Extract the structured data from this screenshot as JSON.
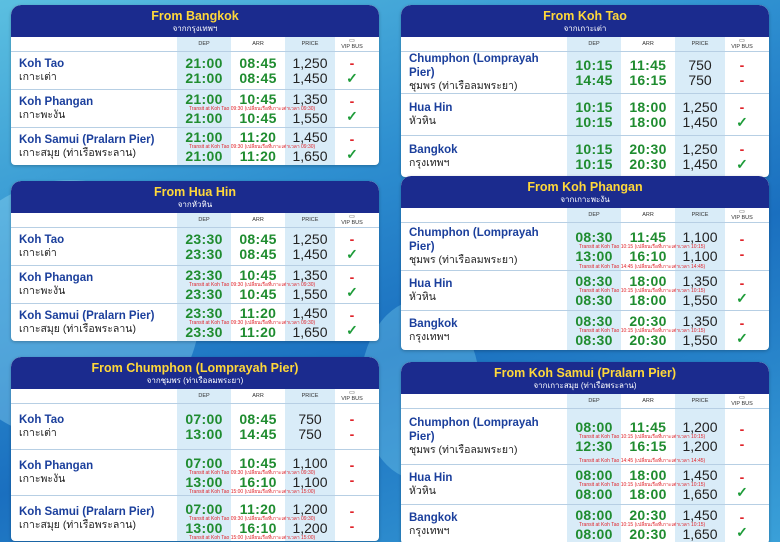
{
  "col_labels": {
    "dep": "DEP",
    "arr": "ARR",
    "price": "PRICE",
    "vip": "VIP BUS"
  },
  "panels": [
    {
      "title": "From Bangkok",
      "subtitle": "จากกรุงเทพฯ",
      "rows": [
        {
          "en": "Koh Tao",
          "th": "เกาะเต่า",
          "dep": [
            "21:00",
            "21:00"
          ],
          "arr": [
            "08:45",
            "08:45"
          ],
          "price": [
            "1,250",
            "1,450"
          ],
          "vip": [
            "-",
            "✓"
          ],
          "note": ""
        },
        {
          "en": "Koh Phangan",
          "th": "เกาะพะงัน",
          "dep": [
            "21:00",
            "21:00"
          ],
          "arr": [
            "10:45",
            "10:45"
          ],
          "price": [
            "1,350",
            "1,550"
          ],
          "vip": [
            "-",
            "✓"
          ],
          "note": "Transit at Koh Tao 09:30 (เปลี่ยนเรือที่เกาะเต่าเวลา 09:30)"
        },
        {
          "en": "Koh Samui (Pralarn Pier)",
          "th": "เกาะสมุย (ท่าเรือพระลาน)",
          "dep": [
            "21:00",
            "21:00"
          ],
          "arr": [
            "11:20",
            "11:20"
          ],
          "price": [
            "1,450",
            "1,650"
          ],
          "vip": [
            "-",
            "✓"
          ],
          "note": "Transit at Koh Tao 09:30 (เปลี่ยนเรือที่เกาะเต่าเวลา 09:30)"
        }
      ]
    },
    {
      "title": "From Koh Tao",
      "subtitle": "จากเกาะเต่า",
      "rows": [
        {
          "en": "Chumphon (Lomprayah Pier)",
          "th": "ชุมพร (ท่าเรือลมพระยา)",
          "dep": [
            "10:15",
            "14:45"
          ],
          "arr": [
            "11:45",
            "16:15"
          ],
          "price": [
            "750",
            "750"
          ],
          "vip": [
            "-",
            "-"
          ],
          "note": ""
        },
        {
          "en": "Hua Hin",
          "th": "หัวหิน",
          "dep": [
            "10:15",
            "10:15"
          ],
          "arr": [
            "18:00",
            "18:00"
          ],
          "price": [
            "1,250",
            "1,450"
          ],
          "vip": [
            "-",
            "✓"
          ],
          "note": ""
        },
        {
          "en": "Bangkok",
          "th": "กรุงเทพฯ",
          "dep": [
            "10:15",
            "10:15"
          ],
          "arr": [
            "20:30",
            "20:30"
          ],
          "price": [
            "1,250",
            "1,450"
          ],
          "vip": [
            "-",
            "✓"
          ],
          "note": ""
        }
      ]
    },
    {
      "title": "From Hua Hin",
      "subtitle": "จากหัวหิน",
      "rows": [
        {
          "en": "Koh Tao",
          "th": "เกาะเต่า",
          "dep": [
            "23:30",
            "23:30"
          ],
          "arr": [
            "08:45",
            "08:45"
          ],
          "price": [
            "1,250",
            "1,450"
          ],
          "vip": [
            "-",
            "✓"
          ],
          "note": ""
        },
        {
          "en": "Koh Phangan",
          "th": "เกาะพะงัน",
          "dep": [
            "23:30",
            "23:30"
          ],
          "arr": [
            "10:45",
            "10:45"
          ],
          "price": [
            "1,350",
            "1,550"
          ],
          "vip": [
            "-",
            "✓"
          ],
          "note": "Transit at Koh Tao 09:30 (เปลี่ยนเรือที่เกาะเต่าเวลา 09:30)"
        },
        {
          "en": "Koh Samui (Pralarn Pier)",
          "th": "เกาะสมุย (ท่าเรือพระลาน)",
          "dep": [
            "23:30",
            "23:30"
          ],
          "arr": [
            "11:20",
            "11:20"
          ],
          "price": [
            "1,450",
            "1,650"
          ],
          "vip": [
            "-",
            "✓"
          ],
          "note": "Transit at Koh Tao 09:30 (เปลี่ยนเรือที่เกาะเต่าเวลา 09:30)"
        }
      ]
    },
    {
      "title": "From Koh Phangan",
      "subtitle": "จากเกาะพะงัน",
      "rows": [
        {
          "en": "Chumphon (Lomprayah Pier)",
          "th": "ชุมพร (ท่าเรือลมพระยา)",
          "dep": [
            "08:30",
            "13:00"
          ],
          "arr": [
            "11:45",
            "16:10"
          ],
          "price": [
            "1,100",
            "1,100"
          ],
          "vip": [
            "-",
            "-"
          ],
          "note": "Transit at Koh Tao 10:15 (เปลี่ยนเรือที่เกาะเต่าเวลา 10:15)",
          "note2": "Transit at Koh Tao 14:45 (เปลี่ยนเรือที่เกาะเต่าเวลา 14:45)"
        },
        {
          "en": "Hua Hin",
          "th": "หัวหิน",
          "dep": [
            "08:30",
            "08:30"
          ],
          "arr": [
            "18:00",
            "18:00"
          ],
          "price": [
            "1,350",
            "1,550"
          ],
          "vip": [
            "-",
            "✓"
          ],
          "note": "Transit at Koh Tao 10:15 (เปลี่ยนเรือที่เกาะเต่าเวลา 10:15)"
        },
        {
          "en": "Bangkok",
          "th": "กรุงเทพฯ",
          "dep": [
            "08:30",
            "08:30"
          ],
          "arr": [
            "20:30",
            "20:30"
          ],
          "price": [
            "1,350",
            "1,550"
          ],
          "vip": [
            "-",
            "✓"
          ],
          "note": "Transit at Koh Tao 10:15 (เปลี่ยนเรือที่เกาะเต่าเวลา 10:15)"
        }
      ]
    },
    {
      "title": "From Chumphon (Lomprayah Pier)",
      "subtitle": "จากชุมพร (ท่าเรือลมพระยา)",
      "rows": [
        {
          "en": "Koh Tao",
          "th": "เกาะเต่า",
          "dep": [
            "07:00",
            "13:00"
          ],
          "arr": [
            "08:45",
            "14:45"
          ],
          "price": [
            "750",
            "750"
          ],
          "vip": [
            "-",
            "-"
          ],
          "note": ""
        },
        {
          "en": "Koh Phangan",
          "th": "เกาะพะงัน",
          "dep": [
            "07:00",
            "13:00"
          ],
          "arr": [
            "10:45",
            "16:10"
          ],
          "price": [
            "1,100",
            "1,100"
          ],
          "vip": [
            "-",
            "-"
          ],
          "note": "Transit at Koh Tao 09:30 (เปลี่ยนเรือที่เกาะเต่าเวลา 09:30)",
          "note2": "Transit at Koh Tao 15:00 (เปลี่ยนเรือที่เกาะเต่าเวลา 15:00)"
        },
        {
          "en": "Koh Samui (Pralarn Pier)",
          "th": "เกาะสมุย (ท่าเรือพระลาน)",
          "dep": [
            "07:00",
            "13:00"
          ],
          "arr": [
            "11:20",
            "16:10"
          ],
          "price": [
            "1,200",
            "1,200"
          ],
          "vip": [
            "-",
            "-"
          ],
          "note": "Transit at Koh Tao 09:30 (เปลี่ยนเรือที่เกาะเต่าเวลา 09:30)",
          "note2": "Transit at Koh Tao 15:00 (เปลี่ยนเรือที่เกาะเต่าเวลา 15:00)"
        }
      ]
    },
    {
      "title": "From Koh Samui (Pralarn Pier)",
      "subtitle": "จากเกาะสมุย (ท่าเรือพระลาน)",
      "rows": [
        {
          "en": "Chumphon (Lomprayah Pier)",
          "th": "ชุมพร (ท่าเรือลมพระยา)",
          "dep": [
            "08:00",
            "12:30"
          ],
          "arr": [
            "11:45",
            "16:15"
          ],
          "price": [
            "1,200",
            "1,200"
          ],
          "vip": [
            "-",
            "-"
          ],
          "note": "Transit at Koh Tao 10:15 (เปลี่ยนเรือที่เกาะเต่าเวลา 10:15)",
          "note2": "Transit at Koh Tao 14:45 (เปลี่ยนเรือที่เกาะเต่าเวลา 14:45)"
        },
        {
          "en": "Hua Hin",
          "th": "หัวหิน",
          "dep": [
            "08:00",
            "08:00"
          ],
          "arr": [
            "18:00",
            "18:00"
          ],
          "price": [
            "1,450",
            "1,650"
          ],
          "vip": [
            "-",
            "✓"
          ],
          "note": "Transit at Koh Tao 10:15 (เปลี่ยนเรือที่เกาะเต่าเวลา 10:15)"
        },
        {
          "en": "Bangkok",
          "th": "กรุงเทพฯ",
          "dep": [
            "08:00",
            "08:00"
          ],
          "arr": [
            "20:30",
            "20:30"
          ],
          "price": [
            "1,450",
            "1,650"
          ],
          "vip": [
            "-",
            "✓"
          ],
          "note": "Transit at Koh Tao 10:15 (เปลี่ยนเรือที่เกาะเต่าเวลา 10:15)"
        }
      ]
    }
  ]
}
